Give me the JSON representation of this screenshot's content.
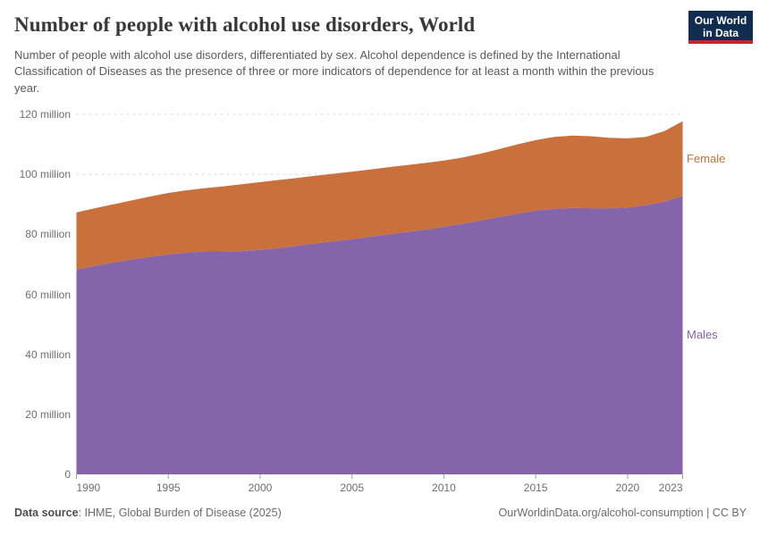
{
  "header": {
    "title": "Number of people with alcohol use disorders, World",
    "subtitle": "Number of people with alcohol use disorders, differentiated by sex. Alcohol dependence is defined by the International Classification of Diseases as the presence of three or more indicators of dependence for at least a month within the previous year.",
    "logo": {
      "line1": "Our World",
      "line2": "in Data",
      "bg_color": "#102d50",
      "accent_color": "#c0272d"
    }
  },
  "chart_data": {
    "type": "area",
    "stacked": true,
    "title": "Number of people with alcohol use disorders, World",
    "xlabel": "",
    "ylabel": "",
    "grid": "dashed-horizontal",
    "legend_position": "right-edge-labels",
    "ylim": [
      0,
      120
    ],
    "unit": "million",
    "x": [
      1990,
      1991,
      1992,
      1993,
      1994,
      1995,
      1996,
      1997,
      1998,
      1999,
      2000,
      2001,
      2002,
      2003,
      2004,
      2005,
      2006,
      2007,
      2008,
      2009,
      2010,
      2011,
      2012,
      2013,
      2014,
      2015,
      2016,
      2017,
      2018,
      2019,
      2020,
      2021,
      2022,
      2023
    ],
    "series": [
      {
        "name": "Males",
        "color": "#8465ab",
        "values": [
          68.3,
          69.5,
          70.6,
          71.6,
          72.5,
          73.3,
          73.9,
          74.3,
          74.3,
          74.4,
          74.8,
          75.4,
          76.2,
          77.0,
          77.7,
          78.4,
          79.2,
          80.0,
          80.8,
          81.6,
          82.5,
          83.5,
          84.6,
          85.8,
          86.9,
          87.9,
          88.5,
          88.8,
          88.7,
          88.7,
          89.0,
          89.7,
          90.9,
          92.8
        ]
      },
      {
        "name": "Female",
        "color": "#c9703d",
        "values": [
          19.0,
          19.2,
          19.4,
          19.7,
          20.1,
          20.5,
          20.8,
          21.1,
          21.7,
          22.3,
          22.6,
          22.7,
          22.6,
          22.5,
          22.5,
          22.5,
          22.4,
          22.4,
          22.3,
          22.2,
          22.1,
          22.1,
          22.3,
          22.6,
          23.1,
          23.5,
          24.0,
          24.1,
          24.0,
          23.5,
          23.0,
          22.8,
          23.5,
          24.9
        ]
      }
    ],
    "y_ticks": [
      {
        "value": 0,
        "label": "0"
      },
      {
        "value": 20,
        "label": "20 million"
      },
      {
        "value": 40,
        "label": "40 million"
      },
      {
        "value": 60,
        "label": "60 million"
      },
      {
        "value": 80,
        "label": "80 million"
      },
      {
        "value": 100,
        "label": "100 million"
      },
      {
        "value": 120,
        "label": "120 million"
      }
    ],
    "x_ticks": [
      1990,
      1995,
      2000,
      2005,
      2010,
      2015,
      2020,
      2023
    ]
  },
  "footer": {
    "source_label": "Data source",
    "source_rest": ": IHME, Global Burden of Disease (2025)",
    "attribution": "OurWorldinData.org/alcohol-consumption | CC BY"
  }
}
